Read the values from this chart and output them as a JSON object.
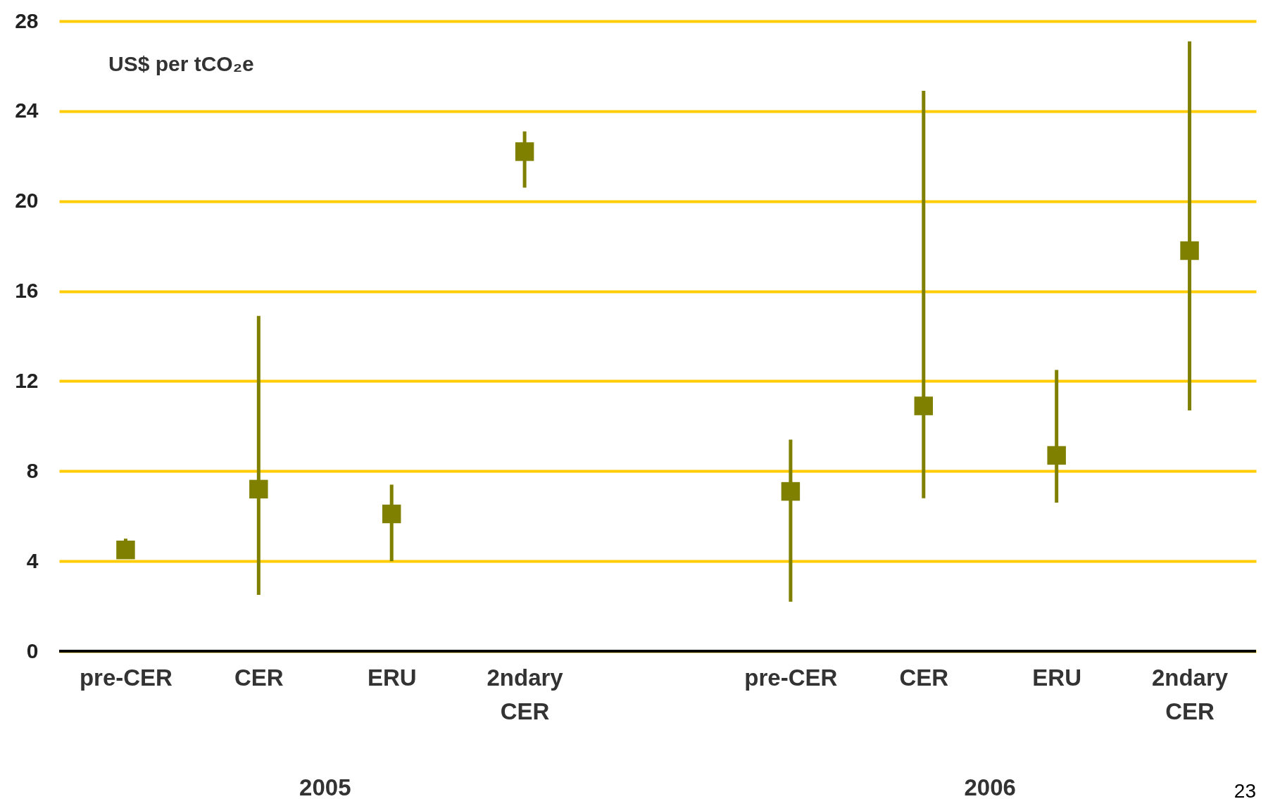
{
  "chart_data": {
    "type": "scatter",
    "ylabel": "US$ per tCO₂e",
    "categories": [
      "pre-CER",
      "CER",
      "ERU",
      "2ndary CER",
      null,
      "pre-CER",
      "CER",
      "ERU",
      "2ndary CER"
    ],
    "series": [
      {
        "color": "#808000",
        "values": [
          4.5,
          7.2,
          6.1,
          22.2,
          null,
          7.1,
          10.9,
          8.7,
          17.8
        ],
        "errors": [
          [
            4.5,
            5.0
          ],
          [
            2.5,
            14.9
          ],
          [
            4.0,
            7.4
          ],
          [
            20.6,
            23.1
          ],
          null,
          [
            2.2,
            9.4
          ],
          [
            6.8,
            24.9
          ],
          [
            6.6,
            12.5
          ],
          [
            10.7,
            27.1
          ]
        ]
      }
    ],
    "ylim": [
      0,
      28
    ],
    "yticks": [
      0,
      4,
      8,
      12,
      16,
      20,
      24,
      28
    ],
    "grid": "y",
    "marker": "square",
    "annotations": [
      "2005",
      "2006",
      "23"
    ]
  }
}
